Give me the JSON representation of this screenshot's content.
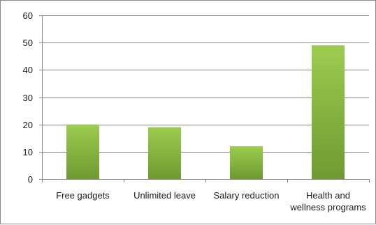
{
  "chart_data": {
    "type": "bar",
    "title": "",
    "xlabel": "",
    "ylabel": "",
    "categories": [
      [
        "Free gadgets"
      ],
      [
        "Unlimited leave"
      ],
      [
        "Salary reduction"
      ],
      [
        "Health and",
        "wellness programs"
      ]
    ],
    "values": [
      20,
      19,
      12,
      49
    ],
    "ylim": [
      0,
      60
    ],
    "yticks": [
      "0",
      "10",
      "20",
      "30",
      "40",
      "50",
      "60"
    ],
    "grid": true,
    "legend": "none",
    "colors": {
      "bar_top": "#9ccc4f",
      "bar_bottom": "#6e9a31",
      "grid": "#868686"
    }
  }
}
